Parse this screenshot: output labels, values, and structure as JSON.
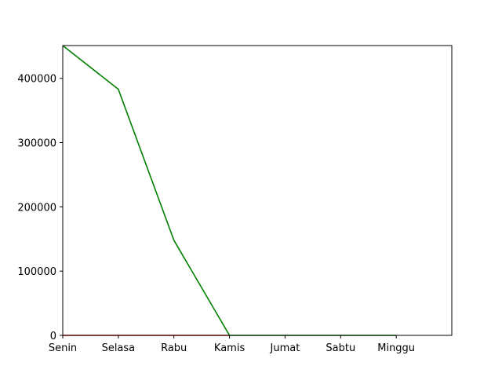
{
  "chart_data": {
    "type": "line",
    "title": "",
    "xlabel": "",
    "ylabel": "",
    "categories": [
      "Senin",
      "Selasa",
      "Rabu",
      "Kamis",
      "Jumat",
      "Sabtu",
      "Minggu"
    ],
    "xlim": [
      0,
      7
    ],
    "ylim": [
      0,
      451000
    ],
    "yticks": [
      0,
      100000,
      200000,
      300000,
      400000
    ],
    "ytick_labels": [
      "0",
      "100000",
      "200000",
      "300000",
      "400000"
    ],
    "grid": false,
    "legend": "none",
    "series": [
      {
        "color": "#008000",
        "values": [
          451000,
          383000,
          148000,
          0,
          0,
          0,
          0
        ]
      },
      {
        "color": "#ff0000",
        "values": [
          0,
          0,
          0,
          0,
          null,
          null,
          null
        ]
      }
    ]
  }
}
